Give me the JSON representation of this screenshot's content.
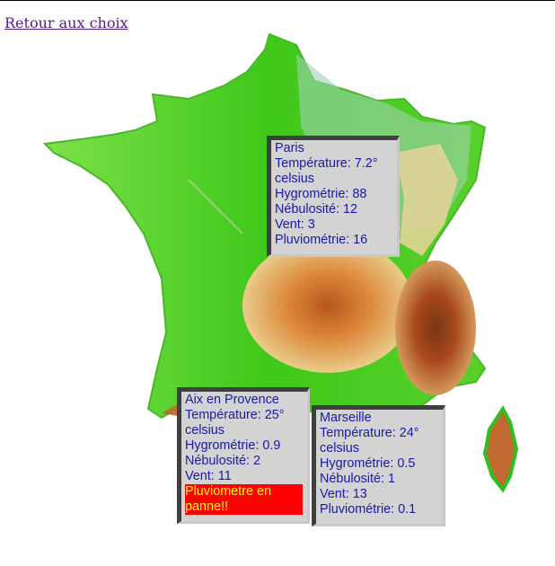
{
  "nav": {
    "back_label": "Retour aux choix"
  },
  "map": {
    "alt": "France"
  },
  "stations": {
    "paris": {
      "name": "Paris",
      "temperature": "Température: 7.2° celsius",
      "hygrometry": "Hygrométrie: 88",
      "cloudiness": "Nébulosité: 12",
      "wind": "Vent: 3",
      "rainfall": "Pluviométrie: 16"
    },
    "aix": {
      "name": "Aix en Provence",
      "temperature": "Température: 25° celsius",
      "hygrometry": "Hygrométrie: 0.9",
      "cloudiness": "Nébulosité: 2",
      "wind": "Vent: 11",
      "alert": "Pluviometre en panne!!"
    },
    "marseille": {
      "name": "Marseille",
      "temperature": "Température: 24° celsius",
      "hygrometry": "Hygrométrie: 0.5",
      "cloudiness": "Nébulosité: 1",
      "wind": "Vent: 13",
      "rainfall": "Pluviométrie: 0.1"
    }
  },
  "colors": {
    "card_bg": "#d3d3d3",
    "card_text": "#1a1aa6",
    "alert_bg": "#ff0000",
    "alert_text": "#ffff00",
    "link": "#551a8b"
  }
}
